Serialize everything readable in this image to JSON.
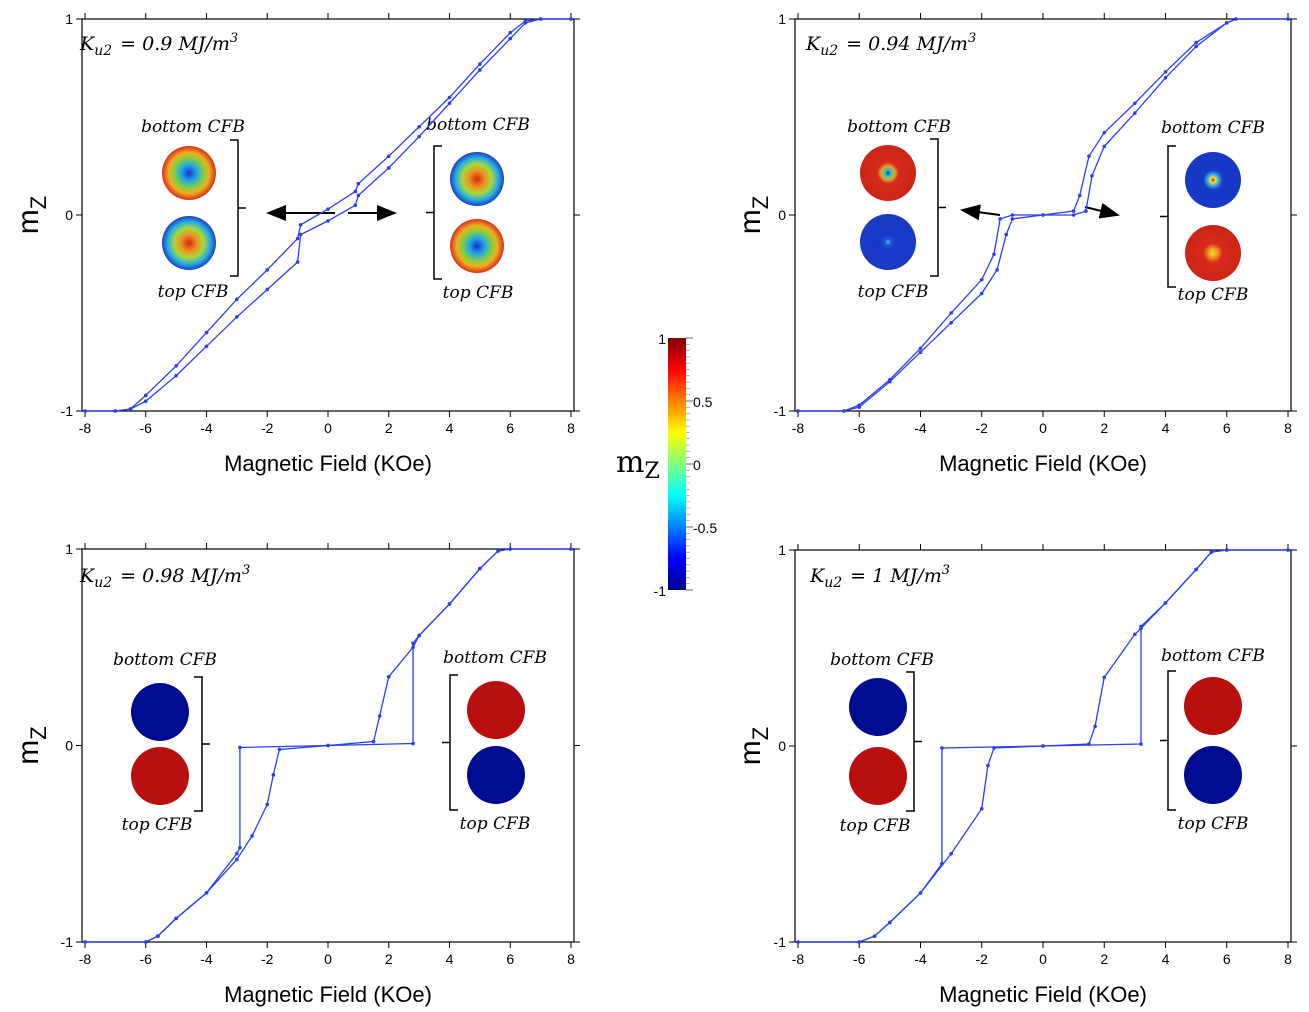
{
  "chart_data": [
    {
      "type": "line",
      "xlabel": "Magnetic Field (KOe)",
      "ylabel": [
        "m",
        "Z"
      ],
      "annotation": {
        "symbol": "K",
        "subscript": "u2",
        "text": "= 0.9 MJ/m",
        "superscript": "3"
      },
      "inset_labels": [
        [
          "bottom CFB",
          "top CFB"
        ],
        [
          "bottom CFB",
          "top CFB"
        ]
      ],
      "xlim": [
        -8,
        8
      ],
      "ylim": [
        -1,
        1
      ],
      "xticks": [
        -8,
        -6,
        -4,
        -2,
        0,
        2,
        4,
        6,
        8
      ],
      "yticks": [
        -1,
        0,
        1
      ],
      "series": [
        {
          "color": "#2a3ff0",
          "x": [
            -8,
            -7,
            -6.5,
            -6,
            -5,
            -4,
            -3,
            -2,
            -1,
            -0.9,
            0,
            0.9,
            1,
            2,
            3,
            4,
            5,
            6,
            6.5,
            7,
            8
          ],
          "values": [
            -1,
            -1,
            -0.99,
            -0.95,
            -0.82,
            -0.67,
            -0.52,
            -0.38,
            -0.24,
            -0.1,
            -0.03,
            0.05,
            0.1,
            0.24,
            0.4,
            0.57,
            0.74,
            0.9,
            0.98,
            1,
            1
          ]
        },
        {
          "color": "#2a3ff0",
          "x": [
            8,
            7,
            6.5,
            6,
            5,
            4,
            3,
            2,
            1,
            0.9,
            0,
            -0.9,
            -1,
            -2,
            -3,
            -4,
            -5,
            -6,
            -6.5,
            -7,
            -8
          ],
          "values": [
            1,
            1,
            0.99,
            0.93,
            0.77,
            0.6,
            0.45,
            0.3,
            0.16,
            0.12,
            0.03,
            -0.05,
            -0.12,
            -0.28,
            -0.43,
            -0.6,
            -0.77,
            -0.92,
            -0.99,
            -1,
            -1
          ]
        }
      ]
    },
    {
      "type": "line",
      "xlabel": "Magnetic Field (KOe)",
      "ylabel": [
        "m",
        "Z"
      ],
      "annotation": {
        "symbol": "K",
        "subscript": "u2",
        "text": "= 0.94 MJ/m",
        "superscript": "3"
      },
      "inset_labels": [
        [
          "bottom CFB",
          "top CFB"
        ],
        [
          "bottom CFB",
          "top CFB"
        ]
      ],
      "xlim": [
        -8,
        8
      ],
      "ylim": [
        -1,
        1
      ],
      "xticks": [
        -8,
        -6,
        -4,
        -2,
        0,
        2,
        4,
        6,
        8
      ],
      "yticks": [
        -1,
        0,
        1
      ],
      "series": [
        {
          "color": "#2a3ff0",
          "x": [
            -8,
            -6.5,
            -6,
            -5,
            -4,
            -3,
            -2,
            -1.5,
            -1.2,
            -1,
            0,
            1,
            1.4,
            1.6,
            2,
            3,
            4,
            5,
            6,
            6.3,
            8
          ],
          "values": [
            -1,
            -1,
            -0.98,
            -0.85,
            -0.7,
            -0.55,
            -0.4,
            -0.28,
            -0.1,
            -0.02,
            0,
            0,
            0.02,
            0.2,
            0.35,
            0.52,
            0.7,
            0.86,
            0.98,
            1,
            1
          ]
        },
        {
          "color": "#2a3ff0",
          "x": [
            8,
            6.3,
            6,
            5,
            4,
            3,
            2,
            1.5,
            1.2,
            1,
            0,
            -1,
            -1.4,
            -1.6,
            -2,
            -3,
            -4,
            -5,
            -6,
            -6.5,
            -8
          ],
          "values": [
            1,
            1,
            0.98,
            0.88,
            0.73,
            0.57,
            0.42,
            0.3,
            0.1,
            0.02,
            0,
            0,
            -0.02,
            -0.2,
            -0.33,
            -0.5,
            -0.68,
            -0.84,
            -0.97,
            -1,
            -1
          ]
        }
      ]
    },
    {
      "type": "line",
      "xlabel": "Magnetic Field (KOe)",
      "ylabel": [
        "m",
        "Z"
      ],
      "annotation": {
        "symbol": "K",
        "subscript": "u2",
        "text": "= 0.98 MJ/m",
        "superscript": "3"
      },
      "inset_labels": [
        [
          "bottom CFB",
          "top CFB"
        ],
        [
          "bottom CFB",
          "top CFB"
        ]
      ],
      "xlim": [
        -8,
        8
      ],
      "ylim": [
        -1,
        1
      ],
      "xticks": [
        -8,
        -6,
        -4,
        -2,
        0,
        2,
        4,
        6,
        8
      ],
      "yticks": [
        -1,
        0,
        1
      ],
      "series": [
        {
          "color": "#2a3ff0",
          "x": [
            -8,
            -6,
            -5.6,
            -5,
            -4,
            -3,
            -2.5,
            -2,
            -1.8,
            -1.6,
            0,
            1.5,
            1.7,
            2,
            2.8,
            3,
            4,
            5,
            5.6,
            6,
            8
          ],
          "values": [
            -1,
            -1,
            -0.97,
            -0.88,
            -0.75,
            -0.58,
            -0.46,
            -0.3,
            -0.15,
            -0.02,
            0,
            0.02,
            0.15,
            0.35,
            0.5,
            0.56,
            0.72,
            0.9,
            0.99,
            1,
            1
          ]
        },
        {
          "color": "#2a3ff0",
          "x": [
            8,
            6,
            5.6,
            5,
            4,
            3,
            2.8,
            2.8,
            0,
            -2.9,
            -2.9,
            -3,
            -4,
            -5,
            -5.6,
            -6,
            -8
          ],
          "values": [
            1,
            1,
            0.99,
            0.9,
            0.72,
            0.56,
            0.52,
            0.01,
            0,
            -0.01,
            -0.52,
            -0.55,
            -0.75,
            -0.88,
            -0.97,
            -1,
            -1
          ]
        }
      ]
    },
    {
      "type": "line",
      "xlabel": "Magnetic Field (KOe)",
      "ylabel": [
        "m",
        "Z"
      ],
      "annotation": {
        "symbol": "K",
        "subscript": "u2",
        "text": "= 1 MJ/m",
        "superscript": "3"
      },
      "inset_labels": [
        [
          "bottom CFB",
          "top CFB"
        ],
        [
          "bottom CFB",
          "top CFB"
        ]
      ],
      "xlim": [
        -8,
        8
      ],
      "ylim": [
        -1,
        1
      ],
      "xticks": [
        -8,
        -6,
        -4,
        -2,
        0,
        2,
        4,
        6,
        8
      ],
      "yticks": [
        -1,
        0,
        1
      ],
      "series": [
        {
          "color": "#2a3ff0",
          "x": [
            -8,
            -6,
            -5.5,
            -5,
            -4,
            -3,
            -2,
            -1.8,
            -1.6,
            0,
            1.5,
            1.7,
            2,
            3,
            3.2,
            4,
            5,
            5.5,
            6,
            8
          ],
          "values": [
            -1,
            -1,
            -0.97,
            -0.9,
            -0.75,
            -0.55,
            -0.32,
            -0.1,
            -0.01,
            0,
            0.01,
            0.1,
            0.35,
            0.57,
            0.6,
            0.73,
            0.9,
            0.99,
            1,
            1
          ]
        },
        {
          "color": "#2a3ff0",
          "x": [
            8,
            6,
            5.5,
            5,
            4,
            3.2,
            3.2,
            0,
            -3.3,
            -3.3,
            -4,
            -5,
            -5.5,
            -6,
            -8
          ],
          "values": [
            1,
            1,
            0.99,
            0.9,
            0.73,
            0.61,
            0.01,
            0,
            -0.01,
            -0.6,
            -0.75,
            -0.9,
            -0.97,
            -1,
            -1
          ]
        }
      ]
    }
  ],
  "colorbar": {
    "label": [
      "m",
      "Z"
    ],
    "lim": [
      -1,
      1
    ],
    "ticks": [
      -1,
      -0.5,
      0,
      0.5,
      1
    ],
    "colormap": "jet"
  }
}
